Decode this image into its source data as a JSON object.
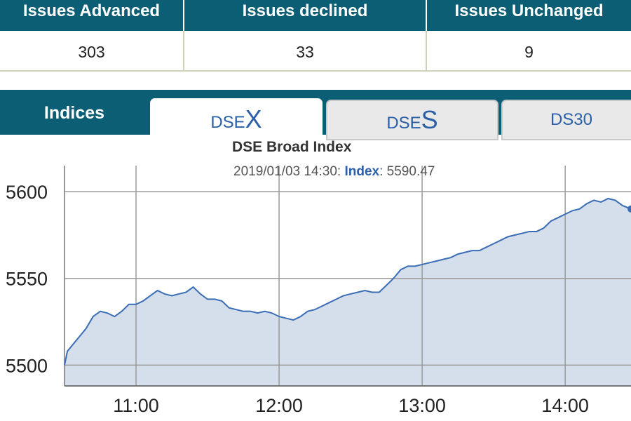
{
  "stats": {
    "headers": [
      "Issues Advanced",
      "Issues declined",
      "Issues Unchanged"
    ],
    "values": [
      "303",
      "33",
      "9"
    ]
  },
  "tabs": {
    "indices_label": "Indices",
    "dsex": {
      "prefix": "DSE",
      "big": "X"
    },
    "dses": {
      "prefix": "DSE",
      "big": "S"
    },
    "ds30": {
      "label": "DS30"
    }
  },
  "colors": {
    "header_bg": "#0b5e73",
    "line": "#3a6db5",
    "area": "#d5deeb",
    "grid": "#9a9a9a"
  },
  "chart_data": {
    "type": "area",
    "title": "DSE Broad Index",
    "tooltip": {
      "time": "2019/01/03 14:30:",
      "label": "Index",
      "value": "5590.47"
    },
    "yticks": [
      5500,
      5550,
      5600
    ],
    "ylim": [
      5488,
      5615
    ],
    "xticks": [
      "11:00",
      "12:00",
      "13:00",
      "14:00"
    ],
    "xlim": [
      10.5,
      14.46
    ],
    "grid": true,
    "series": [
      {
        "x": [
          10.5,
          10.52,
          10.55,
          10.6,
          10.65,
          10.7,
          10.75,
          10.8,
          10.85,
          10.9,
          10.95,
          11.0,
          11.05,
          11.1,
          11.15,
          11.2,
          11.25,
          11.3,
          11.35,
          11.4,
          11.45,
          11.5,
          11.55,
          11.6,
          11.65,
          11.7,
          11.75,
          11.8,
          11.85,
          11.9,
          11.95,
          12.0,
          12.05,
          12.1,
          12.15,
          12.2,
          12.25,
          12.3,
          12.35,
          12.4,
          12.45,
          12.5,
          12.55,
          12.6,
          12.65,
          12.7,
          12.75,
          12.8,
          12.85,
          12.9,
          12.95,
          13.0,
          13.05,
          13.1,
          13.15,
          13.2,
          13.25,
          13.3,
          13.35,
          13.4,
          13.45,
          13.5,
          13.55,
          13.6,
          13.65,
          13.7,
          13.75,
          13.8,
          13.85,
          13.9,
          13.95,
          14.0,
          14.05,
          14.1,
          14.15,
          14.2,
          14.25,
          14.3,
          14.35,
          14.4,
          14.43,
          14.46
        ],
        "y": [
          5500,
          5508,
          5511,
          5516,
          5521,
          5528,
          5531,
          5530,
          5528,
          5531,
          5535,
          5535,
          5537,
          5540,
          5543,
          5541,
          5540,
          5541,
          5542,
          5545,
          5541,
          5538,
          5538,
          5537,
          5533,
          5532,
          5531,
          5531,
          5530,
          5531,
          5530,
          5528,
          5527,
          5526,
          5528,
          5531,
          5532,
          5534,
          5536,
          5538,
          5540,
          5541,
          5542,
          5543,
          5542,
          5542,
          5546,
          5550,
          5555,
          5557,
          5557,
          5558,
          5559,
          5560,
          5561,
          5562,
          5564,
          5565,
          5566,
          5566,
          5568,
          5570,
          5572,
          5574,
          5575,
          5576,
          5577,
          5577,
          5579,
          5583,
          5585,
          5587,
          5589,
          5590,
          5593,
          5595,
          5594,
          5596,
          5595,
          5592,
          5591,
          5590
        ]
      }
    ]
  }
}
